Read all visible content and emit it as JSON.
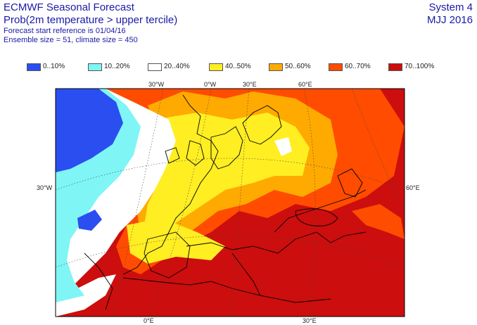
{
  "header": {
    "title": "ECMWF Seasonal Forecast",
    "subtitle": "Prob(2m temperature > upper tercile)",
    "start_ref": "Forecast start reference is 01/04/16",
    "ensemble": "Ensemble size = 51, climate size = 450",
    "system": "System 4",
    "period": "MJJ 2016"
  },
  "legend": [
    {
      "label": "0..10%",
      "color": "#2a4ef0"
    },
    {
      "label": "10..20%",
      "color": "#7ff5f5"
    },
    {
      "label": "20..40%",
      "color": "#ffffff"
    },
    {
      "label": "40..50%",
      "color": "#ffee22"
    },
    {
      "label": "50..60%",
      "color": "#ffaa00"
    },
    {
      "label": "60..70%",
      "color": "#ff4c00"
    },
    {
      "label": "70..100%",
      "color": "#cc0e0e"
    }
  ],
  "grid_labels": {
    "top_30w": "30°W",
    "top_0w": "0°W",
    "top_30e": "30°E",
    "top_60e": "60°E",
    "left_30w": "30°W",
    "right_60e": "60°E",
    "bottom_0e": "0°E",
    "bottom_30e": "30°E"
  }
}
